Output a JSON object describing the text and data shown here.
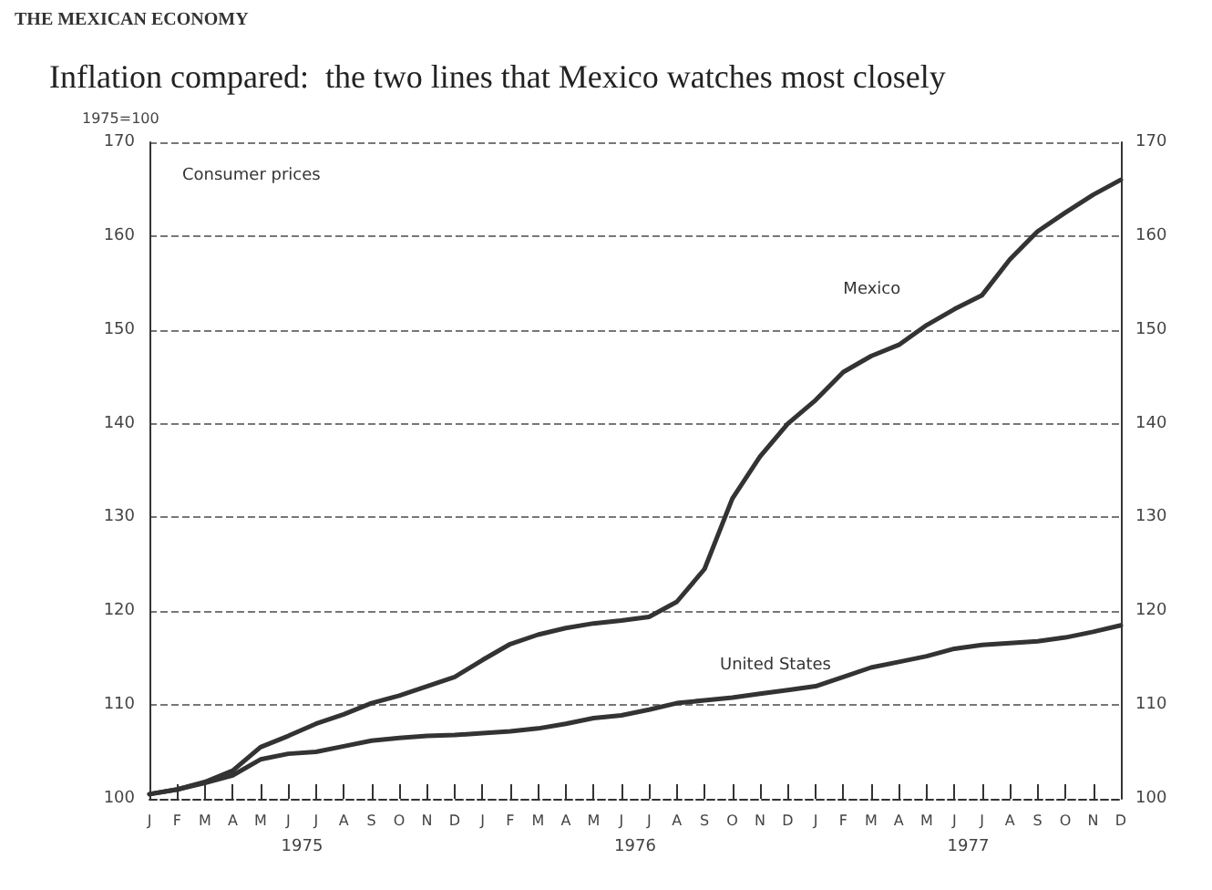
{
  "chart_data": {
    "type": "line",
    "title": "Inflation compared:  the two lines that Mexico watches most closely",
    "subtitle": "1975=100",
    "annotations": [
      "THE MEXICAN ECONOMY",
      "Consumer prices",
      "1975",
      "1976",
      "1977"
    ],
    "categories": [
      "J",
      "F",
      "M",
      "A",
      "M",
      "J",
      "J",
      "A",
      "S",
      "O",
      "N",
      "D",
      "J",
      "F",
      "M",
      "A",
      "M",
      "J",
      "J",
      "A",
      "S",
      "O",
      "N",
      "D",
      "J",
      "F",
      "M",
      "A",
      "M",
      "J",
      "J",
      "A",
      "S",
      "O",
      "N",
      "D"
    ],
    "series": [
      {
        "name": "Mexico",
        "color": "#333333",
        "values": [
          100.5,
          101,
          101.8,
          103,
          105.5,
          106.7,
          108,
          109,
          110.2,
          111,
          112,
          113,
          114.8,
          116.5,
          117.5,
          118.2,
          118.7,
          119,
          119.4,
          121,
          124.5,
          132,
          136.5,
          140,
          142.5,
          145.5,
          147.2,
          148.4,
          150.5,
          152.2,
          153.7,
          157.5,
          160.5,
          162.5,
          164.4,
          166
        ]
      },
      {
        "name": "United States",
        "color": "#333333",
        "values": [
          100.5,
          101,
          101.7,
          102.5,
          104.2,
          104.8,
          105,
          105.6,
          106.2,
          106.5,
          106.7,
          106.8,
          107,
          107.2,
          107.5,
          108,
          108.6,
          108.9,
          109.5,
          110.2,
          110.5,
          110.8,
          111.2,
          111.6,
          112,
          113,
          114,
          114.6,
          115.2,
          116,
          116.4,
          116.6,
          116.8,
          117.2,
          117.8,
          118.5
        ]
      }
    ],
    "ylim": [
      100,
      170
    ],
    "yticks": [
      100,
      110,
      120,
      130,
      140,
      150,
      160,
      170
    ],
    "y2lim": [
      100,
      170
    ],
    "y2ticks": [
      100,
      110,
      120,
      130,
      140,
      150,
      160,
      170
    ],
    "grid": "y",
    "legend": false,
    "marker": "none",
    "line_style": "solid"
  }
}
